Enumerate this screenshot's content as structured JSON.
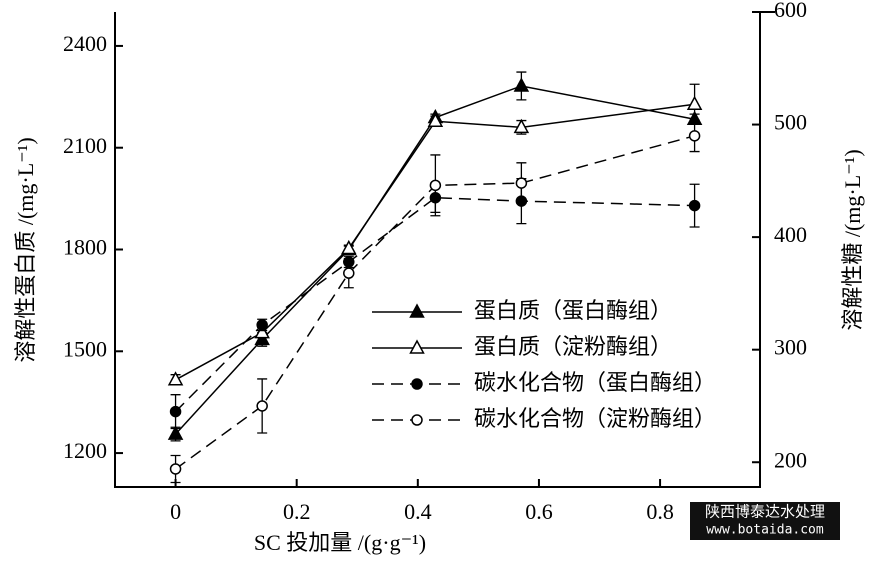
{
  "chart_data": {
    "type": "line",
    "x": [
      0,
      0.143,
      0.286,
      0.429,
      0.571,
      0.857
    ],
    "xlabel": "SC 投加量 /(g·g⁻¹)",
    "ylabel": "溶解性蛋白质 /(mg·L⁻¹)",
    "y2label": "溶解性糖 /(mg·L⁻¹)",
    "xlim": [
      -0.1,
      0.965
    ],
    "xticks": [
      0,
      0.2,
      0.4,
      0.6,
      0.8
    ],
    "ylim": [
      1100,
      2500
    ],
    "yticks": [
      1200,
      1500,
      1800,
      2100,
      2400
    ],
    "y2lim": [
      178,
      600
    ],
    "y2ticks": [
      200,
      300,
      400,
      500,
      600
    ],
    "legend": "center-right",
    "series": [
      {
        "name": "蛋白质（蛋白酶组）",
        "color": "#000000",
        "marker": "triangle",
        "filled": true,
        "dashed": false,
        "values": [
          1256,
          1535,
          1800,
          2189,
          2282,
          2184
        ],
        "errors": [
          20,
          20,
          10,
          10,
          41,
          15
        ]
      },
      {
        "name": "蛋白质（淀粉酶组）",
        "color": "#000000",
        "marker": "triangle",
        "filled": false,
        "dashed": false,
        "values": [
          1416,
          1555,
          1803,
          2178,
          2160,
          2228
        ],
        "errors": [
          15,
          15,
          10,
          15,
          20,
          59
        ]
      },
      {
        "name": "碳水化合物（蛋白酶组）",
        "color": "#000000",
        "marker": "circle",
        "filled": true,
        "dashed": true,
        "axis": "y2",
        "values": [
          245,
          322,
          378,
          435,
          432,
          428
        ],
        "errors": [
          15,
          5,
          5,
          13,
          20,
          19
        ]
      },
      {
        "name": "碳水化合物（淀粉酶组）",
        "color": "#000000",
        "marker": "circle",
        "filled": false,
        "dashed": true,
        "axis": "y2",
        "values": [
          194,
          250,
          368,
          446,
          448,
          490
        ],
        "errors": [
          12,
          24,
          13,
          27,
          18,
          14
        ]
      }
    ],
    "watermark": [
      "陕西博泰达水处理",
      "www.botaida.com"
    ]
  }
}
